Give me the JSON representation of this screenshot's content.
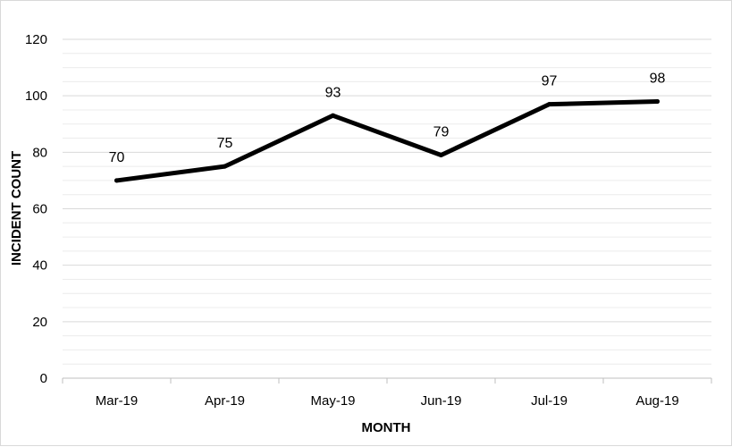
{
  "chart_data": {
    "type": "line",
    "categories": [
      "Mar-19",
      "Apr-19",
      "May-19",
      "Jun-19",
      "Jul-19",
      "Aug-19"
    ],
    "series": [
      {
        "values": [
          70,
          75,
          93,
          79,
          97,
          98
        ]
      }
    ],
    "data_labels": [
      "70",
      "75",
      "93",
      "79",
      "97",
      "98"
    ],
    "xlabel": "MONTH",
    "ylabel": "INCIDENT COUNT",
    "ylim": [
      0,
      120
    ],
    "y_ticks": [
      "0",
      "20",
      "40",
      "60",
      "80",
      "100",
      "120"
    ],
    "y_tick_values": [
      0,
      20,
      40,
      60,
      80,
      100,
      120
    ],
    "minor_step": 5,
    "grid": true,
    "legend": "none",
    "colors": {
      "line": "#000000",
      "grid": "#d9d9d9",
      "axis": "#bfbfbf"
    }
  }
}
